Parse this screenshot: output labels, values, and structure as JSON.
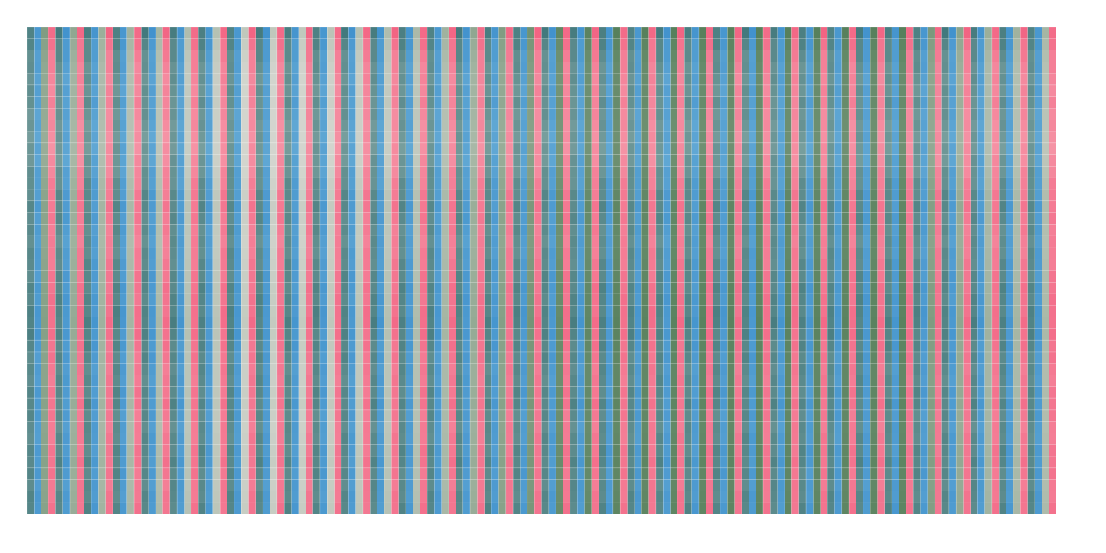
{
  "chart_data": {
    "type": "heatmap",
    "title": "",
    "xlabel": "",
    "ylabel": "",
    "n_rows": 42,
    "n_cols": 144,
    "grid": true,
    "legend": "none",
    "column_cycle": [
      "teal",
      "blue",
      "green-grey",
      "pink"
    ],
    "colors": {
      "teal_dark": "#3b7478",
      "teal_light": "#86a8a6",
      "blue_dark": "#3d8fcc",
      "blue_light": "#6aaed6",
      "green_dark": "#57805c",
      "green_light": "#d3d5ce",
      "pink_dark": "#f25f80",
      "pink_light": "#f6a2b0",
      "gridline": "#ffffff"
    },
    "group_green_intensity": [
      0.6,
      0.45,
      0.35,
      0.3,
      0.25,
      0.15,
      0.1,
      0.0,
      0.0,
      0.0,
      0.05,
      0.1,
      0.15,
      0.2,
      0.3,
      0.45,
      0.6,
      0.75,
      0.9,
      0.95,
      1,
      1,
      1,
      1,
      1,
      1,
      1,
      1,
      1,
      1,
      1,
      0.65,
      0.5,
      0.35,
      0.3,
      0.25
    ],
    "row_intensity": [
      0.9,
      0.7,
      0.55,
      0.45,
      0.4,
      0.4,
      0.45,
      0.35,
      0.3,
      0.25,
      0.25,
      0.3,
      0.4,
      0.5,
      0.6,
      0.65,
      0.6,
      0.55,
      0.5,
      0.55,
      0.6,
      0.65,
      0.7,
      0.7,
      0.75,
      0.8,
      0.75,
      0.7,
      0.65,
      0.6,
      0.6,
      0.65,
      0.7,
      0.6,
      0.55,
      0.6,
      0.65,
      0.7,
      0.65,
      0.6,
      0.65,
      0.7
    ]
  }
}
